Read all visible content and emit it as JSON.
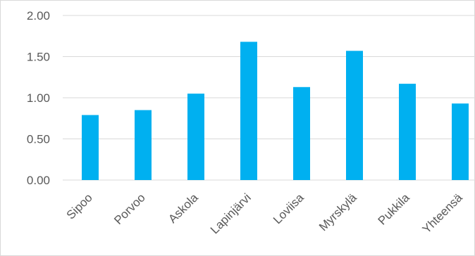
{
  "chart_data": {
    "type": "bar",
    "categories": [
      "Sipoo",
      "Porvoo",
      "Askola",
      "Lapinjärvi",
      "Loviisa",
      "Myrskylä",
      "Pukkila",
      "Yhteensä"
    ],
    "values": [
      0.79,
      0.85,
      1.05,
      1.68,
      1.13,
      1.57,
      1.17,
      0.93
    ],
    "ylim": [
      0,
      2
    ],
    "yticks": [
      "0.00",
      "0.50",
      "1.00",
      "1.50",
      "2.00"
    ],
    "ytick_values": [
      0,
      0.5,
      1.0,
      1.5,
      2.0
    ],
    "bar_color": "#00B0F0",
    "grid": true,
    "legend": false,
    "title": "",
    "xlabel": "",
    "ylabel": ""
  }
}
